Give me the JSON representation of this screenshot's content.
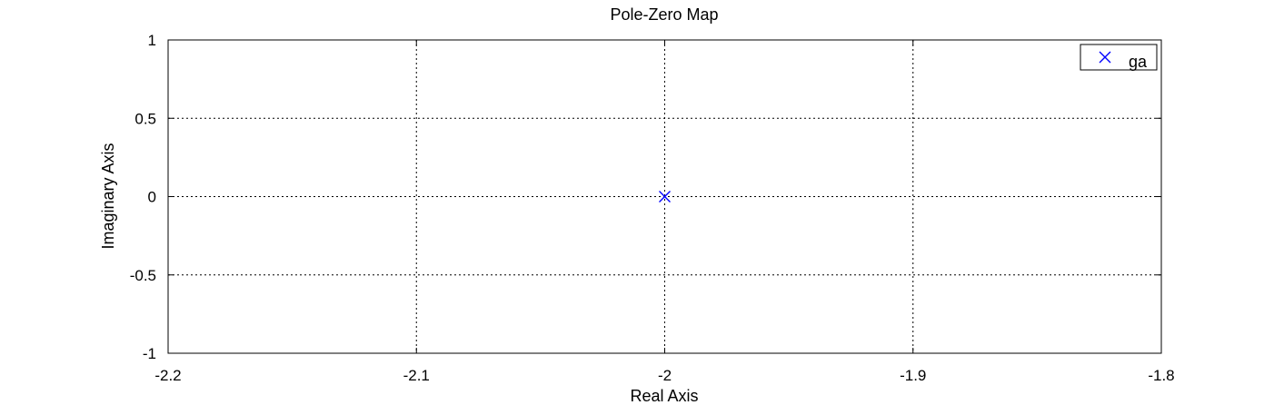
{
  "chart_data": {
    "type": "scatter",
    "title": "Pole-Zero Map",
    "xlabel": "Real Axis",
    "ylabel": "Imaginary Axis",
    "xlim": [
      -2.2,
      -1.8
    ],
    "ylim": [
      -1,
      1
    ],
    "xticks": [
      -2.2,
      -2.1,
      -2,
      -1.9,
      -1.8
    ],
    "xtick_labels": [
      "-2.2",
      "-2.1",
      "-2",
      "-1.9",
      "-1.8"
    ],
    "yticks": [
      -1,
      -0.5,
      0,
      0.5,
      1
    ],
    "ytick_labels": [
      "-1",
      "-0.5",
      "0",
      "0.5",
      "1"
    ],
    "grid": true,
    "legend_position": "top-right",
    "series": [
      {
        "name": "ga",
        "marker": "x",
        "color": "#0000ff",
        "points": [
          {
            "x": -2,
            "y": 0
          }
        ]
      }
    ]
  }
}
